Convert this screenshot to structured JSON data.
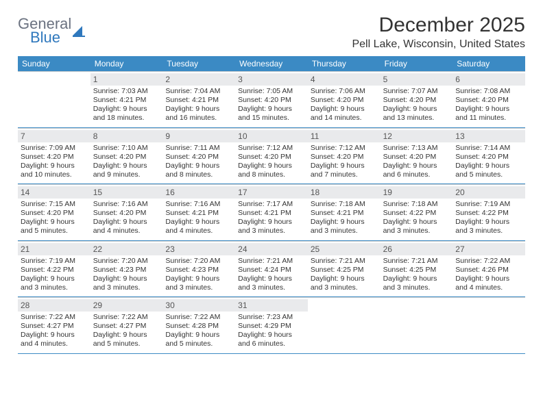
{
  "logo": {
    "text_top": "General",
    "text_bottom": "Blue"
  },
  "title": "December 2025",
  "location": "Pell Lake, Wisconsin, United States",
  "colors": {
    "header_bg": "#3b8ac4",
    "header_text": "#ffffff",
    "daynum_bg": "#e9eaec",
    "daynum_text": "#555555",
    "body_text": "#333333",
    "week_divider": "#3b8ac4",
    "logo_gray": "#6b7280",
    "logo_blue": "#2f78bd",
    "background": "#ffffff"
  },
  "weekdays": [
    "Sunday",
    "Monday",
    "Tuesday",
    "Wednesday",
    "Thursday",
    "Friday",
    "Saturday"
  ],
  "weeks": [
    [
      null,
      {
        "n": "1",
        "sr": "Sunrise: 7:03 AM",
        "ss": "Sunset: 4:21 PM",
        "dl1": "Daylight: 9 hours",
        "dl2": "and 18 minutes."
      },
      {
        "n": "2",
        "sr": "Sunrise: 7:04 AM",
        "ss": "Sunset: 4:21 PM",
        "dl1": "Daylight: 9 hours",
        "dl2": "and 16 minutes."
      },
      {
        "n": "3",
        "sr": "Sunrise: 7:05 AM",
        "ss": "Sunset: 4:20 PM",
        "dl1": "Daylight: 9 hours",
        "dl2": "and 15 minutes."
      },
      {
        "n": "4",
        "sr": "Sunrise: 7:06 AM",
        "ss": "Sunset: 4:20 PM",
        "dl1": "Daylight: 9 hours",
        "dl2": "and 14 minutes."
      },
      {
        "n": "5",
        "sr": "Sunrise: 7:07 AM",
        "ss": "Sunset: 4:20 PM",
        "dl1": "Daylight: 9 hours",
        "dl2": "and 13 minutes."
      },
      {
        "n": "6",
        "sr": "Sunrise: 7:08 AM",
        "ss": "Sunset: 4:20 PM",
        "dl1": "Daylight: 9 hours",
        "dl2": "and 11 minutes."
      }
    ],
    [
      {
        "n": "7",
        "sr": "Sunrise: 7:09 AM",
        "ss": "Sunset: 4:20 PM",
        "dl1": "Daylight: 9 hours",
        "dl2": "and 10 minutes."
      },
      {
        "n": "8",
        "sr": "Sunrise: 7:10 AM",
        "ss": "Sunset: 4:20 PM",
        "dl1": "Daylight: 9 hours",
        "dl2": "and 9 minutes."
      },
      {
        "n": "9",
        "sr": "Sunrise: 7:11 AM",
        "ss": "Sunset: 4:20 PM",
        "dl1": "Daylight: 9 hours",
        "dl2": "and 8 minutes."
      },
      {
        "n": "10",
        "sr": "Sunrise: 7:12 AM",
        "ss": "Sunset: 4:20 PM",
        "dl1": "Daylight: 9 hours",
        "dl2": "and 8 minutes."
      },
      {
        "n": "11",
        "sr": "Sunrise: 7:12 AM",
        "ss": "Sunset: 4:20 PM",
        "dl1": "Daylight: 9 hours",
        "dl2": "and 7 minutes."
      },
      {
        "n": "12",
        "sr": "Sunrise: 7:13 AM",
        "ss": "Sunset: 4:20 PM",
        "dl1": "Daylight: 9 hours",
        "dl2": "and 6 minutes."
      },
      {
        "n": "13",
        "sr": "Sunrise: 7:14 AM",
        "ss": "Sunset: 4:20 PM",
        "dl1": "Daylight: 9 hours",
        "dl2": "and 5 minutes."
      }
    ],
    [
      {
        "n": "14",
        "sr": "Sunrise: 7:15 AM",
        "ss": "Sunset: 4:20 PM",
        "dl1": "Daylight: 9 hours",
        "dl2": "and 5 minutes."
      },
      {
        "n": "15",
        "sr": "Sunrise: 7:16 AM",
        "ss": "Sunset: 4:20 PM",
        "dl1": "Daylight: 9 hours",
        "dl2": "and 4 minutes."
      },
      {
        "n": "16",
        "sr": "Sunrise: 7:16 AM",
        "ss": "Sunset: 4:21 PM",
        "dl1": "Daylight: 9 hours",
        "dl2": "and 4 minutes."
      },
      {
        "n": "17",
        "sr": "Sunrise: 7:17 AM",
        "ss": "Sunset: 4:21 PM",
        "dl1": "Daylight: 9 hours",
        "dl2": "and 3 minutes."
      },
      {
        "n": "18",
        "sr": "Sunrise: 7:18 AM",
        "ss": "Sunset: 4:21 PM",
        "dl1": "Daylight: 9 hours",
        "dl2": "and 3 minutes."
      },
      {
        "n": "19",
        "sr": "Sunrise: 7:18 AM",
        "ss": "Sunset: 4:22 PM",
        "dl1": "Daylight: 9 hours",
        "dl2": "and 3 minutes."
      },
      {
        "n": "20",
        "sr": "Sunrise: 7:19 AM",
        "ss": "Sunset: 4:22 PM",
        "dl1": "Daylight: 9 hours",
        "dl2": "and 3 minutes."
      }
    ],
    [
      {
        "n": "21",
        "sr": "Sunrise: 7:19 AM",
        "ss": "Sunset: 4:22 PM",
        "dl1": "Daylight: 9 hours",
        "dl2": "and 3 minutes."
      },
      {
        "n": "22",
        "sr": "Sunrise: 7:20 AM",
        "ss": "Sunset: 4:23 PM",
        "dl1": "Daylight: 9 hours",
        "dl2": "and 3 minutes."
      },
      {
        "n": "23",
        "sr": "Sunrise: 7:20 AM",
        "ss": "Sunset: 4:23 PM",
        "dl1": "Daylight: 9 hours",
        "dl2": "and 3 minutes."
      },
      {
        "n": "24",
        "sr": "Sunrise: 7:21 AM",
        "ss": "Sunset: 4:24 PM",
        "dl1": "Daylight: 9 hours",
        "dl2": "and 3 minutes."
      },
      {
        "n": "25",
        "sr": "Sunrise: 7:21 AM",
        "ss": "Sunset: 4:25 PM",
        "dl1": "Daylight: 9 hours",
        "dl2": "and 3 minutes."
      },
      {
        "n": "26",
        "sr": "Sunrise: 7:21 AM",
        "ss": "Sunset: 4:25 PM",
        "dl1": "Daylight: 9 hours",
        "dl2": "and 3 minutes."
      },
      {
        "n": "27",
        "sr": "Sunrise: 7:22 AM",
        "ss": "Sunset: 4:26 PM",
        "dl1": "Daylight: 9 hours",
        "dl2": "and 4 minutes."
      }
    ],
    [
      {
        "n": "28",
        "sr": "Sunrise: 7:22 AM",
        "ss": "Sunset: 4:27 PM",
        "dl1": "Daylight: 9 hours",
        "dl2": "and 4 minutes."
      },
      {
        "n": "29",
        "sr": "Sunrise: 7:22 AM",
        "ss": "Sunset: 4:27 PM",
        "dl1": "Daylight: 9 hours",
        "dl2": "and 5 minutes."
      },
      {
        "n": "30",
        "sr": "Sunrise: 7:22 AM",
        "ss": "Sunset: 4:28 PM",
        "dl1": "Daylight: 9 hours",
        "dl2": "and 5 minutes."
      },
      {
        "n": "31",
        "sr": "Sunrise: 7:23 AM",
        "ss": "Sunset: 4:29 PM",
        "dl1": "Daylight: 9 hours",
        "dl2": "and 6 minutes."
      },
      null,
      null,
      null
    ]
  ]
}
